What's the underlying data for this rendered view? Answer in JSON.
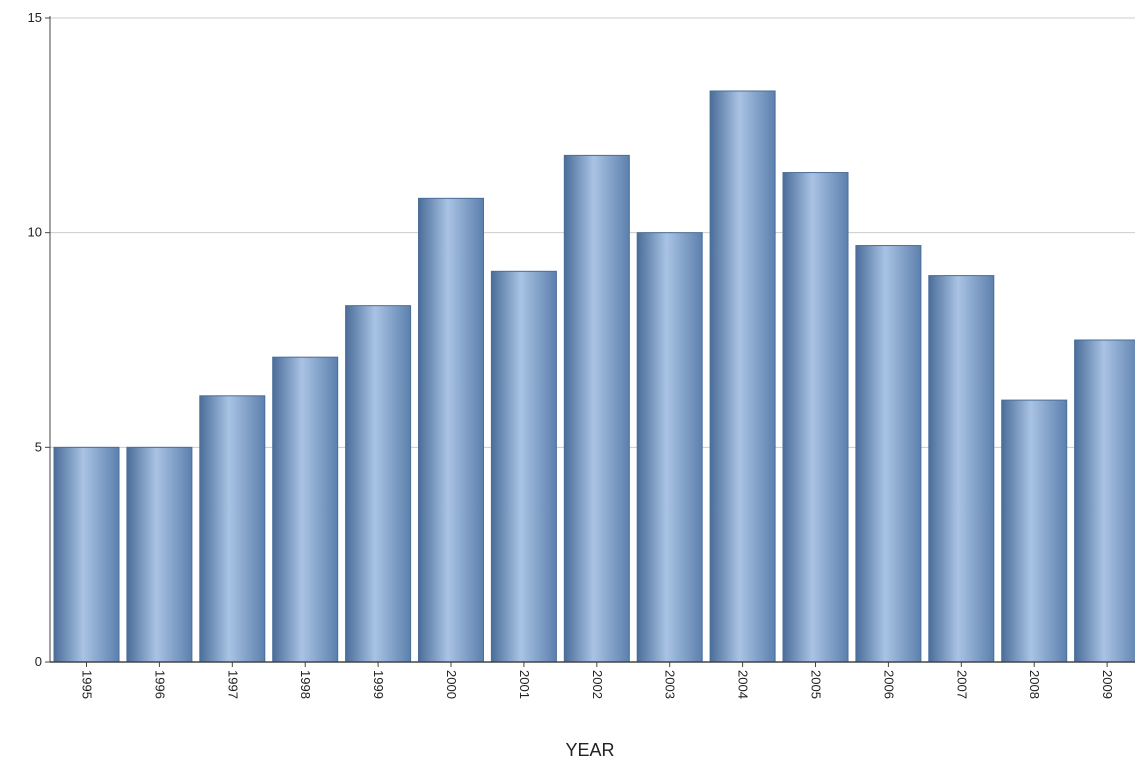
{
  "chart_data": {
    "type": "bar",
    "title": "",
    "xlabel": "YEAR",
    "ylabel": "",
    "categories": [
      "1995",
      "1996",
      "1997",
      "1998",
      "1999",
      "2000",
      "2001",
      "2002",
      "2003",
      "2004",
      "2005",
      "2006",
      "2007",
      "2008",
      "2009"
    ],
    "values": [
      5.0,
      5.0,
      6.2,
      7.1,
      8.3,
      10.8,
      9.1,
      11.8,
      10.0,
      13.3,
      11.4,
      9.7,
      9.0,
      6.1,
      7.5
    ],
    "ylim": [
      0,
      15
    ],
    "yticks": [
      "0",
      "5",
      "10",
      "15"
    ],
    "grid": true,
    "colors": {
      "bar_edge": "#4a6d99",
      "bar_mid": "#a9c3e4",
      "bar_side": "#5c80ad",
      "axis": "#444444",
      "grid": "#cccccc"
    }
  }
}
